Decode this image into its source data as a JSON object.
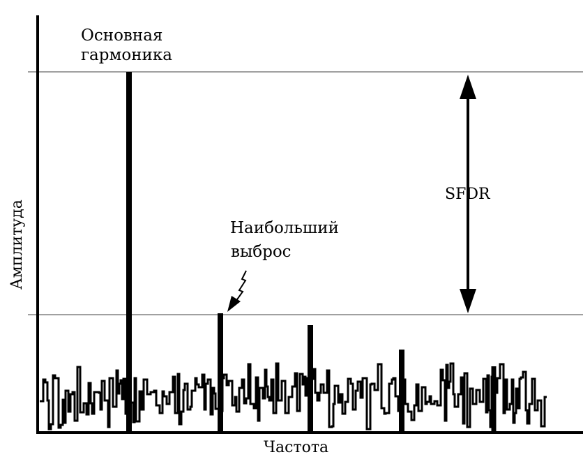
{
  "diagram": {
    "x_axis_label": "Частота",
    "y_axis_label": "Амплитуда",
    "fundamental_label_line1": "Основная",
    "fundamental_label_line2": "гармоника",
    "spur_label_line1": "Наибольший",
    "spur_label_line2": "выброс",
    "sfdr_label": "SFDR"
  },
  "colors": {
    "axis": "#000000",
    "reference_lines": "#a0a0a0",
    "signal": "#000000",
    "background": "#ffffff"
  }
}
